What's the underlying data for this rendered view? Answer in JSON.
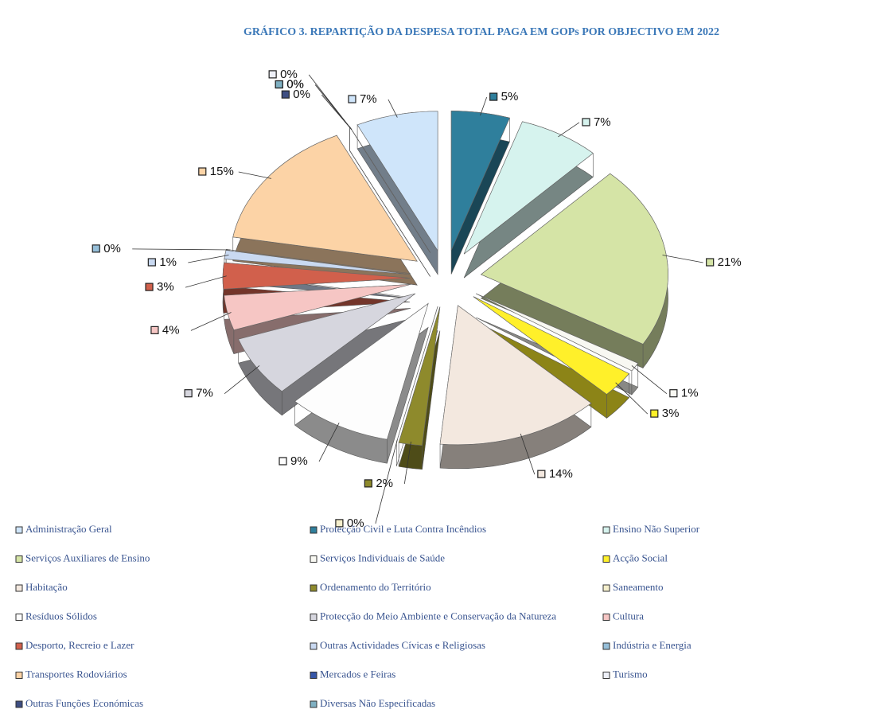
{
  "chart_data": {
    "type": "pie",
    "title": "GRÁFICO 3. REPARTIÇÃO DA DESPESA TOTAL PAGA EM GOPs POR OBJECTIVO EM 2022",
    "categories": [
      "Administração Geral",
      "Protecção Civil e Luta Contra Incêndios",
      "Ensino Não Superior",
      "Serviços Auxiliares de Ensino",
      "Serviços Individuais de Saúde",
      "Acção Social",
      "Habitação",
      "Ordenamento do Território",
      "Saneamento",
      "Resíduos Sólidos",
      "Protecção do Meio Ambiente e Conservação da Natureza",
      "Cultura",
      "Desporto, Recreio e Lazer",
      "Outras Actividades Cívicas e Religiosas",
      "Indústria e Energia",
      "Transportes Rodoviários",
      "Mercados e Feiras",
      "Turismo",
      "Outras Funções Económicas",
      "Diversas Não Especificadas"
    ],
    "values": [
      7,
      5,
      7,
      21,
      1,
      3,
      14,
      2,
      0,
      9,
      7,
      4,
      3,
      1,
      0,
      15,
      0,
      0,
      0,
      0
    ],
    "value_labels": [
      "7%",
      "5%",
      "7%",
      "21%",
      "1%",
      "3%",
      "14%",
      "2%",
      "0%",
      "9%",
      "7%",
      "4%",
      "3%",
      "1%",
      "0%",
      "15%",
      "0%",
      "0%",
      "0%",
      "0%"
    ],
    "colors": [
      "#cfe5fa",
      "#2f7f9c",
      "#d6f3ee",
      "#d5e4a6",
      "#f8f8f2",
      "#fff02a",
      "#f3e8df",
      "#8e8a2c",
      "#f5efcc",
      "#fdfdfd",
      "#d6d6de",
      "#f6c6c4",
      "#d1604c",
      "#c9d9f1",
      "#96bfd9",
      "#fcd3a6",
      "#3757a8",
      "#eef0f8",
      "#3e4e82",
      "#7fb0c2"
    ],
    "legend": "bottom"
  }
}
